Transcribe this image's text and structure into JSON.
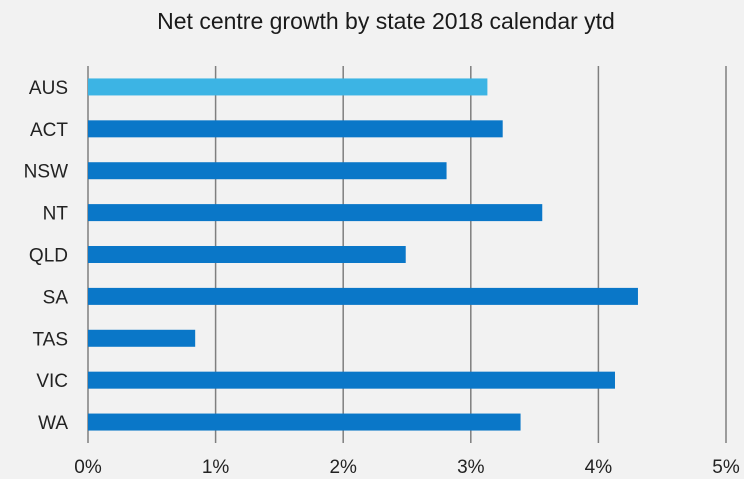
{
  "chart_data": {
    "type": "bar",
    "orientation": "horizontal",
    "title": "Net centre growth by state 2018 calendar ytd",
    "xlabel": "",
    "ylabel": "",
    "categories": [
      "AUS",
      "ACT",
      "NSW",
      "NT",
      "QLD",
      "SA",
      "TAS",
      "VIC",
      "WA"
    ],
    "values": [
      3.13,
      3.25,
      2.81,
      3.56,
      2.49,
      4.31,
      0.84,
      4.13,
      3.39
    ],
    "xlim": [
      0,
      5
    ],
    "x_ticks": [
      0,
      1,
      2,
      3,
      4,
      5
    ],
    "x_tick_labels": [
      "0%",
      "1%",
      "2%",
      "3%",
      "4%",
      "5%"
    ],
    "grid": "vertical",
    "legend": "none",
    "colors": {
      "highlight": "#3cb4e4",
      "bar": "#0a77c8",
      "grid": "#7f7f7f",
      "background": "#f2f2f2"
    },
    "highlight_category": "AUS"
  }
}
